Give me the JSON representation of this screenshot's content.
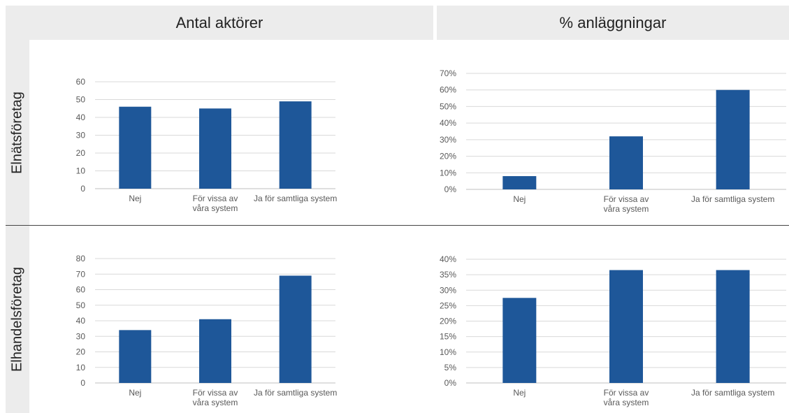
{
  "headers": {
    "left": "Antal aktörer",
    "right": "% anläggningar"
  },
  "rows": {
    "top": "Elnätsföretag",
    "bottom": "Elhandelsföretag"
  },
  "colors": {
    "bar": "#1e5799",
    "grid": "#d9d9d9",
    "axis": "#bfbfbf",
    "panel": "#ececec"
  },
  "chart_data": [
    {
      "type": "bar",
      "title": "",
      "categories": [
        "Nej",
        "För vissa av våra system",
        "Ja för samtliga system"
      ],
      "values": [
        46,
        45,
        49
      ],
      "ylim": [
        0,
        60
      ],
      "ystep": 10,
      "percent": false
    },
    {
      "type": "bar",
      "title": "",
      "categories": [
        "Nej",
        "För vissa av våra system",
        "Ja för samtliga system"
      ],
      "values": [
        0.08,
        0.32,
        0.6
      ],
      "ylim": [
        0,
        0.7
      ],
      "ystep": 0.1,
      "percent": true
    },
    {
      "type": "bar",
      "title": "",
      "categories": [
        "Nej",
        "För vissa av våra system",
        "Ja för samtliga system"
      ],
      "values": [
        34,
        41,
        69
      ],
      "ylim": [
        0,
        80
      ],
      "ystep": 10,
      "percent": false
    },
    {
      "type": "bar",
      "title": "",
      "categories": [
        "Nej",
        "För vissa av våra system",
        "Ja för samtliga system"
      ],
      "values": [
        0.275,
        0.365,
        0.365
      ],
      "ylim": [
        0,
        0.4
      ],
      "ystep": 0.05,
      "percent": true
    }
  ]
}
